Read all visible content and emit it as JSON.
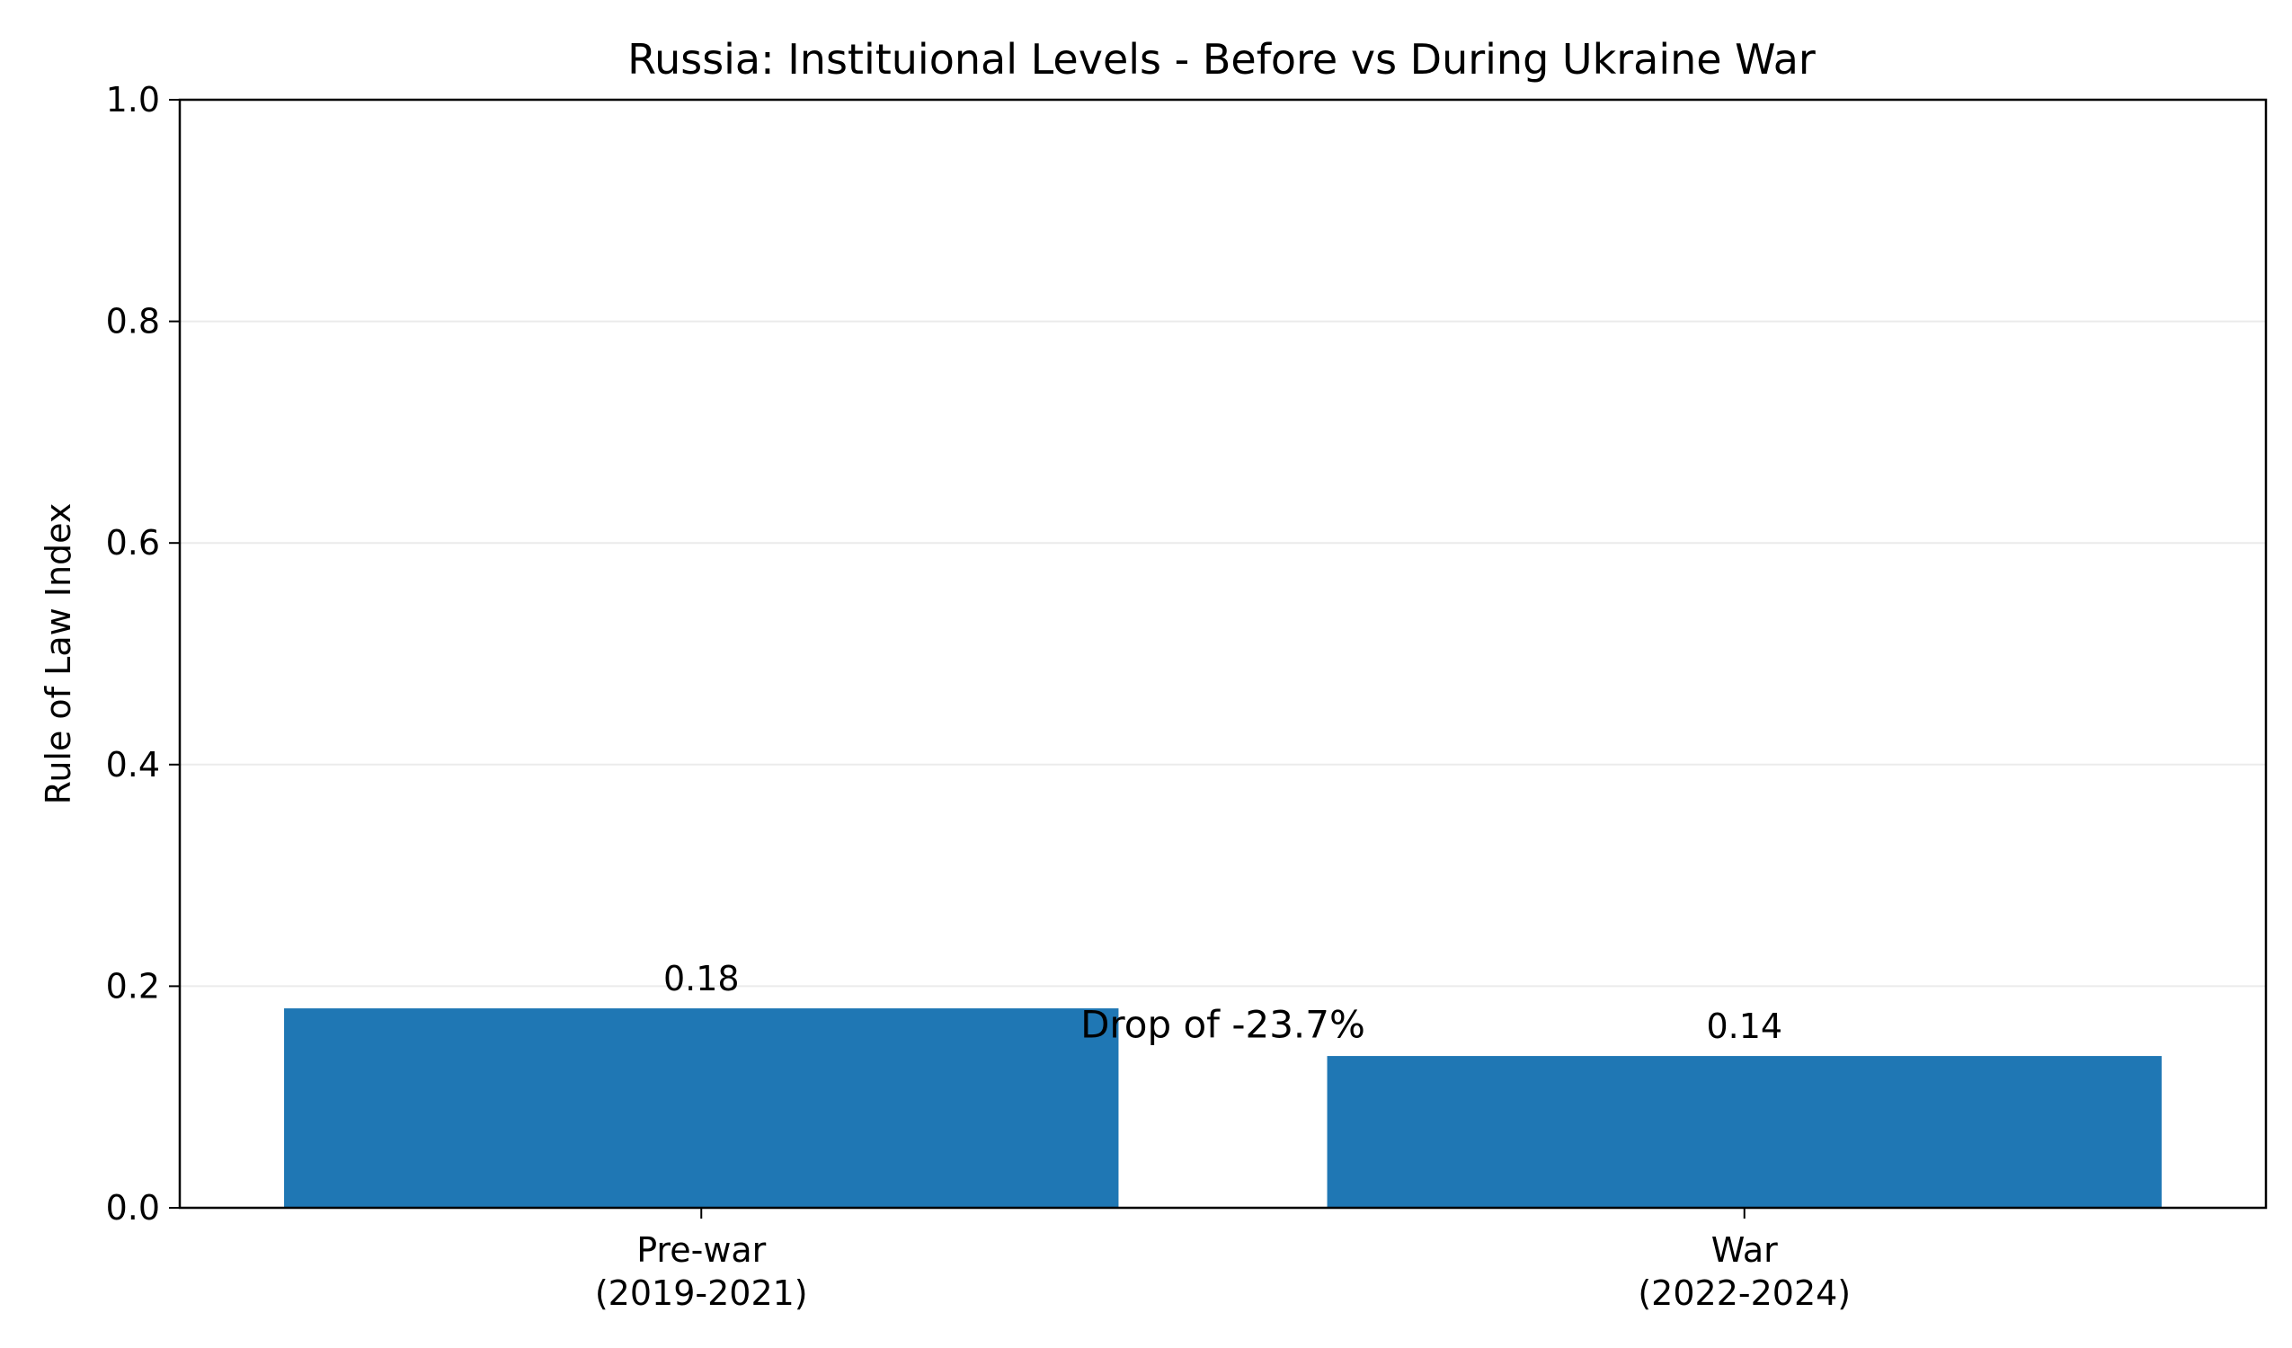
{
  "chart_data": {
    "type": "bar",
    "title": "Russia: Instituional Levels - Before vs During Ukraine War",
    "xlabel": "",
    "ylabel": "Rule of Law Index",
    "categories": [
      [
        "Pre-war",
        "(2019-2021)"
      ],
      [
        "War",
        "(2022-2024)"
      ]
    ],
    "values": [
      0.18,
      0.137
    ],
    "data_labels": [
      "0.18",
      "0.14"
    ],
    "ylim": [
      0,
      1.0
    ],
    "yticks": [
      0.0,
      0.2,
      0.4,
      0.6,
      0.8,
      1.0
    ],
    "ytick_labels": [
      "0.0",
      "0.2",
      "0.4",
      "0.6",
      "0.8",
      "1.0"
    ],
    "grid": "horizontal",
    "annotation": {
      "text": "Drop of -23.7%",
      "x": 0.5,
      "y": 0.165
    },
    "colors": {
      "bar": "#1f77b4",
      "grid": "#ebebeb",
      "axis": "#000000"
    }
  }
}
